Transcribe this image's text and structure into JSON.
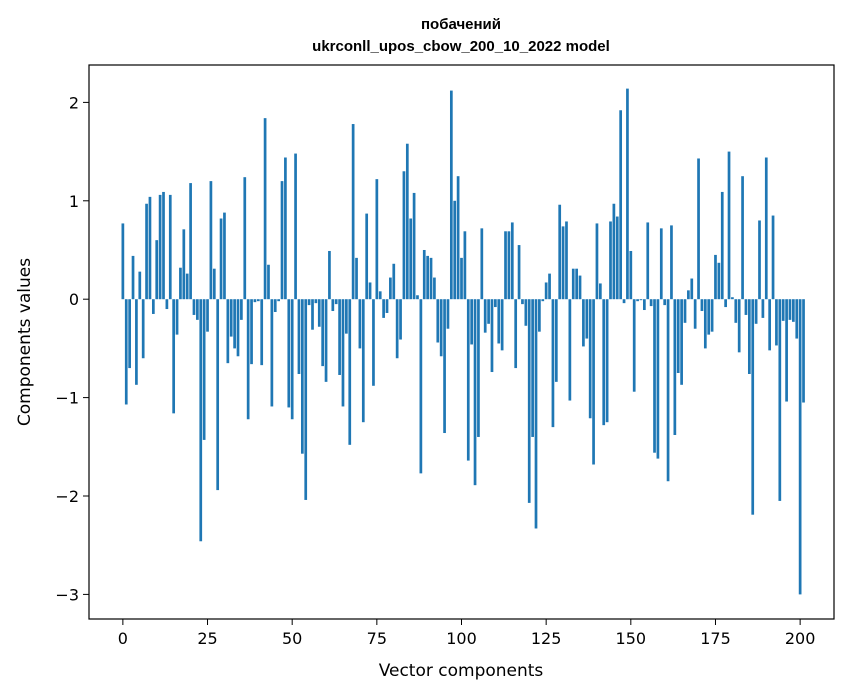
{
  "chart_data": {
    "type": "bar",
    "title": "побачений",
    "subtitle": "ukrconll_upos_cbow_200_10_2022 model",
    "xlabel": "Vector components",
    "ylabel": "Components values",
    "xlim": [
      -10,
      210
    ],
    "ylim": [
      -3.25,
      2.38
    ],
    "xticks": [
      0,
      25,
      50,
      75,
      100,
      125,
      150,
      175,
      200
    ],
    "yticks": [
      -3,
      -2,
      -1,
      0,
      1,
      2
    ],
    "grid": false,
    "bar_color": "#1f77b4",
    "values": [
      0.77,
      -1.07,
      -0.7,
      0.44,
      -0.87,
      0.28,
      -0.6,
      0.97,
      1.04,
      -0.15,
      0.6,
      1.06,
      1.09,
      -0.1,
      1.06,
      -1.16,
      -0.36,
      0.32,
      0.71,
      0.26,
      1.18,
      -0.16,
      -0.21,
      -2.46,
      -1.43,
      -0.33,
      1.2,
      0.31,
      -1.94,
      0.82,
      0.88,
      -0.65,
      -0.38,
      -0.5,
      -0.58,
      -0.21,
      1.24,
      -1.22,
      -0.66,
      -0.03,
      -0.02,
      -0.67,
      1.84,
      0.35,
      -1.09,
      -0.13,
      -0.02,
      1.2,
      1.44,
      -1.1,
      -1.22,
      1.48,
      -0.76,
      -1.57,
      -2.04,
      -0.06,
      -0.31,
      -0.04,
      -0.28,
      -0.68,
      -0.84,
      0.49,
      -0.12,
      -0.05,
      -0.77,
      -1.09,
      -0.35,
      -1.48,
      1.78,
      0.42,
      -0.5,
      -1.25,
      0.87,
      0.17,
      -0.88,
      1.22,
      0.08,
      -0.19,
      -0.14,
      0.22,
      0.36,
      -0.6,
      -0.41,
      1.3,
      1.58,
      0.82,
      1.08,
      0.04,
      -1.77,
      0.5,
      0.44,
      0.42,
      0.22,
      -0.44,
      -0.58,
      -1.36,
      -0.3,
      2.12,
      1.0,
      1.25,
      0.42,
      0.69,
      -1.64,
      -0.46,
      -1.89,
      -1.4,
      0.72,
      -0.34,
      -0.25,
      -0.74,
      -0.08,
      -0.45,
      -0.52,
      0.69,
      0.69,
      0.78,
      -0.7,
      0.55,
      -0.05,
      -0.27,
      -2.07,
      -1.4,
      -2.33,
      -0.33,
      -0.02,
      0.17,
      0.26,
      -1.3,
      -0.84,
      0.96,
      0.74,
      0.79,
      -1.03,
      0.31,
      0.31,
      0.24,
      -0.48,
      -0.4,
      -1.21,
      -1.68,
      0.77,
      0.16,
      -1.28,
      -1.25,
      0.79,
      0.97,
      0.84,
      1.92,
      -0.04,
      2.14,
      0.49,
      -0.94,
      -0.02,
      -0.01,
      -0.11,
      0.78,
      -0.07,
      -1.56,
      -1.62,
      0.72,
      -0.06,
      -1.85,
      0.75,
      -1.38,
      -0.75,
      -0.87,
      -0.24,
      0.09,
      0.21,
      -0.3,
      1.43,
      -0.12,
      -0.5,
      -0.36,
      -0.33,
      0.45,
      0.37,
      1.09,
      -0.08,
      1.5,
      0.02,
      -0.24,
      -0.54,
      1.25,
      -0.16,
      -0.76,
      -2.19,
      -0.25,
      0.8,
      -0.19,
      1.44,
      -0.52,
      0.85,
      -0.47,
      -2.05,
      -0.22,
      -1.04,
      -0.21,
      -0.23,
      -0.4,
      -3.0,
      -1.05
    ]
  }
}
